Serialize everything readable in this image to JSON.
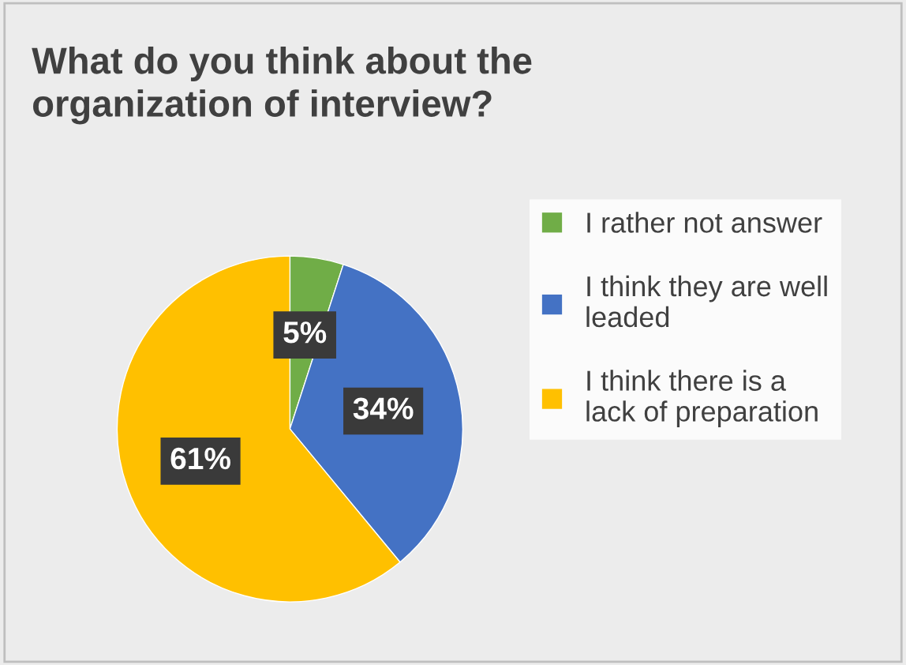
{
  "chart_data": {
    "type": "pie",
    "title": "What do you think about the organization of interview?",
    "categories": [
      "I rather not answer",
      "I think they are well leaded",
      "I think there is a lack of preparation"
    ],
    "values": [
      5,
      34,
      61
    ],
    "colors": [
      "#70ad47",
      "#4472c4",
      "#ffc000"
    ],
    "value_labels": [
      "5%",
      "34%",
      "61%"
    ],
    "legend": "right"
  }
}
